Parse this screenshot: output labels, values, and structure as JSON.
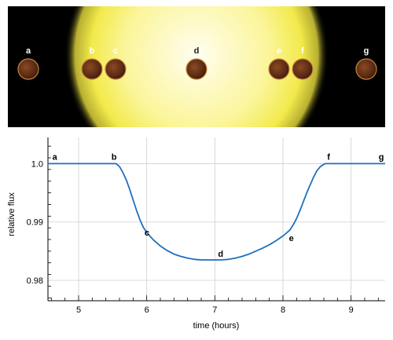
{
  "chart_data": {
    "type": "line",
    "xlabel": "time (hours)",
    "ylabel": "relative flux",
    "xlim": [
      4.55,
      9.5
    ],
    "ylim": [
      0.9765,
      1.0045
    ],
    "x_ticks": [
      5,
      6,
      7,
      8,
      9
    ],
    "y_ticks": [
      0.98,
      0.99,
      1.0
    ],
    "x_tick_labels": [
      "5",
      "6",
      "7",
      "8",
      "9"
    ],
    "y_tick_labels": [
      "0.98",
      "0.99",
      "1.0"
    ],
    "grid": true,
    "series": [
      {
        "color": "#1f6fbf",
        "x": [
          4.55,
          4.8,
          5.0,
          5.2,
          5.4,
          5.5,
          5.55,
          5.6,
          5.65,
          5.7,
          5.75,
          5.8,
          5.85,
          5.9,
          5.95,
          6.0,
          6.1,
          6.2,
          6.3,
          6.4,
          6.5,
          6.6,
          6.7,
          6.8,
          6.9,
          7.0,
          7.1,
          7.2,
          7.3,
          7.4,
          7.5,
          7.6,
          7.7,
          7.8,
          7.9,
          8.0,
          8.1,
          8.15,
          8.2,
          8.25,
          8.3,
          8.35,
          8.4,
          8.45,
          8.5,
          8.55,
          8.6,
          8.62,
          8.65,
          8.7,
          8.8,
          9.0,
          9.2,
          9.5
        ],
        "y": [
          1.0,
          1.0,
          1.0,
          1.0,
          1.0,
          1.0,
          1.0,
          0.9995,
          0.9985,
          0.9972,
          0.9956,
          0.9938,
          0.992,
          0.9904,
          0.9891,
          0.9882,
          0.9869,
          0.9859,
          0.9851,
          0.9845,
          0.9841,
          0.9838,
          0.9836,
          0.9835,
          0.9835,
          0.9835,
          0.9835,
          0.9836,
          0.9838,
          0.9841,
          0.9845,
          0.985,
          0.9855,
          0.9861,
          0.9868,
          0.9876,
          0.9886,
          0.9895,
          0.9906,
          0.992,
          0.9935,
          0.995,
          0.9964,
          0.9977,
          0.9988,
          0.9995,
          0.9999,
          1.0,
          1.0,
          1.0,
          1.0,
          1.0,
          1.0,
          1.0
        ]
      }
    ],
    "annotations": [
      {
        "label": "a",
        "x": 4.65,
        "y": 1.0
      },
      {
        "label": "b",
        "x": 5.52,
        "y": 1.0
      },
      {
        "label": "c",
        "x": 5.98,
        "y": 0.9882
      },
      {
        "label": "d",
        "x": 7.04,
        "y": 0.9835
      },
      {
        "label": "e",
        "x": 8.17,
        "y": 0.9877
      },
      {
        "label": "f",
        "x": 8.67,
        "y": 1.0
      },
      {
        "label": "g",
        "x": 9.42,
        "y": 1.0
      }
    ]
  },
  "transit_panel": {
    "background": "#000000",
    "star_color": "#fff9c8",
    "planet_color": "#5a2a14",
    "positions": [
      {
        "label": "a"
      },
      {
        "label": "b"
      },
      {
        "label": "c"
      },
      {
        "label": "d"
      },
      {
        "label": "e"
      },
      {
        "label": "f"
      },
      {
        "label": "g"
      }
    ]
  }
}
